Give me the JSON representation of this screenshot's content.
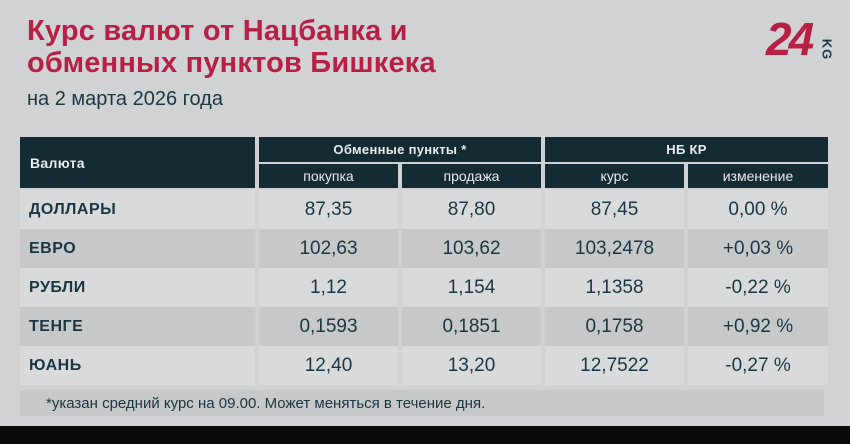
{
  "header": {
    "title_line1": "Курс валют от Нацбанка и",
    "title_line2": "обменных пунктов Бишкека",
    "subtitle": "на 2 марта 2026 года"
  },
  "logo": {
    "number": "24",
    "suffix": "KG"
  },
  "table": {
    "col_currency": "Валюта",
    "group_exchange": "Обменные пункты *",
    "group_nbkr": "НБ КР",
    "sub_buy": "покупка",
    "sub_sell": "продажа",
    "sub_rate": "курс",
    "sub_change": "изменение",
    "rows": [
      {
        "currency": "ДОЛЛАРЫ",
        "buy": "87,35",
        "sell": "87,80",
        "rate": "87,45",
        "change": "0,00 %"
      },
      {
        "currency": "ЕВРО",
        "buy": "102,63",
        "sell": "103,62",
        "rate": "103,2478",
        "change": "+0,03 %"
      },
      {
        "currency": "РУБЛИ",
        "buy": "1,12",
        "sell": "1,154",
        "rate": "1,1358",
        "change": "-0,22 %"
      },
      {
        "currency": "ТЕНГЕ",
        "buy": "0,1593",
        "sell": "0,1851",
        "rate": "0,1758",
        "change": "+0,92 %"
      },
      {
        "currency": "ЮАНЬ",
        "buy": "12,40",
        "sell": "13,20",
        "rate": "12,7522",
        "change": "-0,27 %"
      }
    ]
  },
  "footer": {
    "note": "*указан средний курс на 09.00. Может меняться в течение дня."
  },
  "colors": {
    "accent_red": "#b62045",
    "header_bg": "#152b33",
    "ink": "#1b3640",
    "page_bg": "#d1d2d4",
    "row_light": "#d9dadc",
    "row_dark": "#c6c8ca",
    "header_text": "#e9ebec",
    "bottom_bar": "#0a0a0b"
  },
  "chart_data": {
    "type": "table",
    "title": "Курс валют от Нацбанка и обменных пунктов Бишкека",
    "subtitle": "на 2 марта 2026 года",
    "column_groups": [
      "Обменные пункты *",
      "НБ КР"
    ],
    "columns": [
      "Валюта",
      "покупка",
      "продажа",
      "курс",
      "изменение"
    ],
    "rows": [
      {
        "currency": "ДОЛЛАРЫ",
        "buy": 87.35,
        "sell": 87.8,
        "nbkr_rate": 87.45,
        "change_pct": 0.0
      },
      {
        "currency": "ЕВРО",
        "buy": 102.63,
        "sell": 103.62,
        "nbkr_rate": 103.2478,
        "change_pct": 0.03
      },
      {
        "currency": "РУБЛИ",
        "buy": 1.12,
        "sell": 1.154,
        "nbkr_rate": 1.1358,
        "change_pct": -0.22
      },
      {
        "currency": "ТЕНГЕ",
        "buy": 0.1593,
        "sell": 0.1851,
        "nbkr_rate": 0.1758,
        "change_pct": 0.92
      },
      {
        "currency": "ЮАНЬ",
        "buy": 12.4,
        "sell": 13.2,
        "nbkr_rate": 12.7522,
        "change_pct": -0.27
      }
    ],
    "footnote": "*указан средний курс на 09.00. Может меняться в течение дня."
  }
}
